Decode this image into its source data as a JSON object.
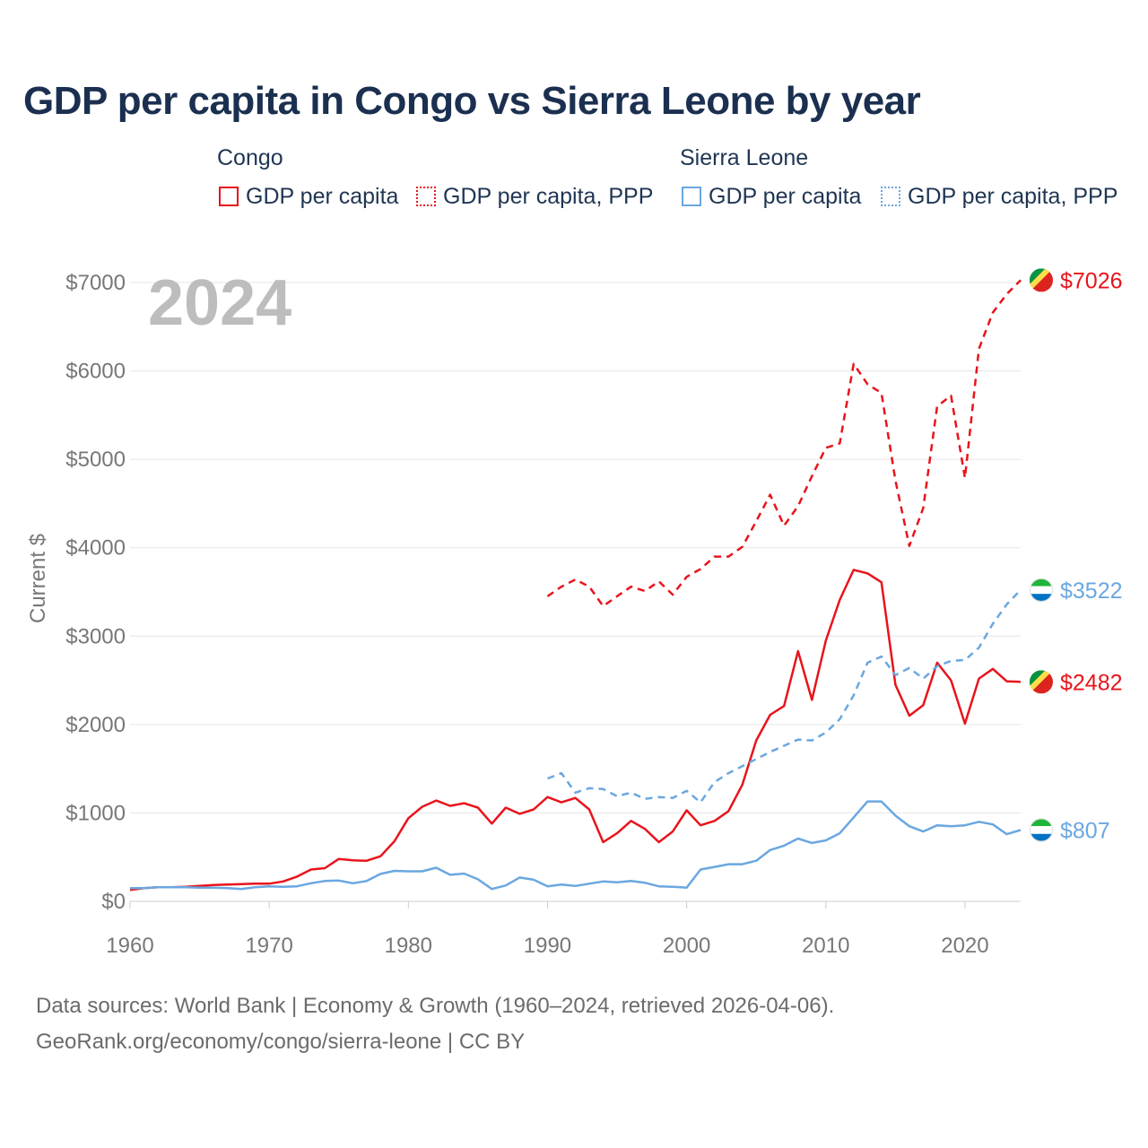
{
  "title": "GDP per capita in Congo vs Sierra Leone by year",
  "legend": {
    "groups": [
      {
        "name": "Congo",
        "items": [
          "GDP per capita",
          "GDP per capita, PPP"
        ],
        "color": "#e8141b"
      },
      {
        "name": "Sierra Leone",
        "items": [
          "GDP per capita",
          "GDP per capita, PPP"
        ],
        "color": "#6aa7e0"
      }
    ]
  },
  "footer": {
    "line1": "Data sources: World Bank | Economy & Growth (1960–2024, retrieved 2026-04-06).",
    "line2": "GeoRank.org/economy/congo/sierra-leone | CC BY"
  },
  "chart_data": {
    "type": "line",
    "title": "GDP per capita in Congo vs Sierra Leone by year",
    "year_label": "2024",
    "ylabel": "Current $",
    "xlabel": "",
    "xlim": [
      1960,
      2024
    ],
    "ylim": [
      0,
      7000
    ],
    "x_ticks": [
      1960,
      1970,
      1980,
      1990,
      2000,
      2010,
      2020
    ],
    "y_ticks": [
      0,
      1000,
      2000,
      3000,
      4000,
      5000,
      6000,
      7000
    ],
    "y_tick_labels": [
      "$0",
      "$1000",
      "$2000",
      "$3000",
      "$4000",
      "$5000",
      "$6000",
      "$7000"
    ],
    "grid": true,
    "series": [
      {
        "name": "Congo GDP per capita",
        "color": "#e8141b",
        "dashed": false,
        "end_label": "$2482",
        "flag": "congo",
        "points": [
          [
            1960,
            130
          ],
          [
            1961,
            150
          ],
          [
            1962,
            160
          ],
          [
            1963,
            160
          ],
          [
            1964,
            165
          ],
          [
            1965,
            175
          ],
          [
            1966,
            185
          ],
          [
            1967,
            190
          ],
          [
            1968,
            195
          ],
          [
            1969,
            200
          ],
          [
            1970,
            200
          ],
          [
            1971,
            225
          ],
          [
            1972,
            280
          ],
          [
            1973,
            360
          ],
          [
            1974,
            375
          ],
          [
            1975,
            480
          ],
          [
            1976,
            465
          ],
          [
            1977,
            460
          ],
          [
            1978,
            510
          ],
          [
            1979,
            680
          ],
          [
            1980,
            940
          ],
          [
            1981,
            1070
          ],
          [
            1982,
            1140
          ],
          [
            1983,
            1080
          ],
          [
            1984,
            1110
          ],
          [
            1985,
            1060
          ],
          [
            1986,
            880
          ],
          [
            1987,
            1060
          ],
          [
            1988,
            990
          ],
          [
            1989,
            1040
          ],
          [
            1990,
            1180
          ],
          [
            1991,
            1120
          ],
          [
            1992,
            1170
          ],
          [
            1993,
            1040
          ],
          [
            1994,
            670
          ],
          [
            1995,
            770
          ],
          [
            1996,
            910
          ],
          [
            1997,
            820
          ],
          [
            1998,
            670
          ],
          [
            1999,
            790
          ],
          [
            2000,
            1030
          ],
          [
            2001,
            860
          ],
          [
            2002,
            910
          ],
          [
            2003,
            1020
          ],
          [
            2004,
            1320
          ],
          [
            2005,
            1820
          ],
          [
            2006,
            2110
          ],
          [
            2007,
            2210
          ],
          [
            2008,
            2830
          ],
          [
            2009,
            2280
          ],
          [
            2010,
            2950
          ],
          [
            2011,
            3410
          ],
          [
            2012,
            3750
          ],
          [
            2013,
            3710
          ],
          [
            2014,
            3610
          ],
          [
            2015,
            2450
          ],
          [
            2016,
            2100
          ],
          [
            2017,
            2220
          ],
          [
            2018,
            2700
          ],
          [
            2019,
            2500
          ],
          [
            2020,
            2010
          ],
          [
            2021,
            2520
          ],
          [
            2022,
            2630
          ],
          [
            2023,
            2490
          ],
          [
            2024,
            2482
          ]
        ]
      },
      {
        "name": "Congo GDP per capita, PPP",
        "color": "#e8141b",
        "dashed": true,
        "end_label": "$7026",
        "flag": "congo",
        "points": [
          [
            1990,
            3450
          ],
          [
            1991,
            3560
          ],
          [
            1992,
            3640
          ],
          [
            1993,
            3560
          ],
          [
            1994,
            3340
          ],
          [
            1995,
            3450
          ],
          [
            1996,
            3560
          ],
          [
            1997,
            3510
          ],
          [
            1998,
            3620
          ],
          [
            1999,
            3470
          ],
          [
            2000,
            3670
          ],
          [
            2001,
            3760
          ],
          [
            2002,
            3900
          ],
          [
            2003,
            3900
          ],
          [
            2004,
            4010
          ],
          [
            2005,
            4300
          ],
          [
            2006,
            4600
          ],
          [
            2007,
            4250
          ],
          [
            2008,
            4470
          ],
          [
            2009,
            4810
          ],
          [
            2010,
            5130
          ],
          [
            2011,
            5180
          ],
          [
            2012,
            6080
          ],
          [
            2013,
            5850
          ],
          [
            2014,
            5750
          ],
          [
            2015,
            4760
          ],
          [
            2016,
            4020
          ],
          [
            2017,
            4450
          ],
          [
            2018,
            5600
          ],
          [
            2019,
            5720
          ],
          [
            2020,
            4790
          ],
          [
            2021,
            6250
          ],
          [
            2022,
            6660
          ],
          [
            2023,
            6870
          ],
          [
            2024,
            7026
          ]
        ]
      },
      {
        "name": "Sierra Leone GDP per capita",
        "color": "#6aa7e0",
        "dashed": false,
        "end_label": "$807",
        "flag": "sierra-leone",
        "points": [
          [
            1960,
            150
          ],
          [
            1961,
            150
          ],
          [
            1962,
            160
          ],
          [
            1963,
            160
          ],
          [
            1964,
            160
          ],
          [
            1965,
            155
          ],
          [
            1966,
            155
          ],
          [
            1967,
            150
          ],
          [
            1968,
            140
          ],
          [
            1969,
            160
          ],
          [
            1970,
            170
          ],
          [
            1971,
            165
          ],
          [
            1972,
            170
          ],
          [
            1973,
            205
          ],
          [
            1974,
            230
          ],
          [
            1975,
            235
          ],
          [
            1976,
            205
          ],
          [
            1977,
            230
          ],
          [
            1978,
            310
          ],
          [
            1979,
            345
          ],
          [
            1980,
            340
          ],
          [
            1981,
            340
          ],
          [
            1982,
            380
          ],
          [
            1983,
            300
          ],
          [
            1984,
            315
          ],
          [
            1985,
            250
          ],
          [
            1986,
            140
          ],
          [
            1987,
            180
          ],
          [
            1988,
            270
          ],
          [
            1989,
            245
          ],
          [
            1990,
            170
          ],
          [
            1991,
            190
          ],
          [
            1992,
            175
          ],
          [
            1993,
            200
          ],
          [
            1994,
            225
          ],
          [
            1995,
            215
          ],
          [
            1996,
            230
          ],
          [
            1997,
            210
          ],
          [
            1998,
            170
          ],
          [
            1999,
            165
          ],
          [
            2000,
            155
          ],
          [
            2001,
            360
          ],
          [
            2002,
            390
          ],
          [
            2003,
            420
          ],
          [
            2004,
            420
          ],
          [
            2005,
            460
          ],
          [
            2006,
            580
          ],
          [
            2007,
            630
          ],
          [
            2008,
            710
          ],
          [
            2009,
            660
          ],
          [
            2010,
            690
          ],
          [
            2011,
            770
          ],
          [
            2012,
            950
          ],
          [
            2013,
            1130
          ],
          [
            2014,
            1130
          ],
          [
            2015,
            970
          ],
          [
            2016,
            850
          ],
          [
            2017,
            790
          ],
          [
            2018,
            860
          ],
          [
            2019,
            850
          ],
          [
            2020,
            860
          ],
          [
            2021,
            900
          ],
          [
            2022,
            870
          ],
          [
            2023,
            760
          ],
          [
            2024,
            807
          ]
        ]
      },
      {
        "name": "Sierra Leone GDP per capita, PPP",
        "color": "#6aa7e0",
        "dashed": true,
        "end_label": "$3522",
        "flag": "sierra-leone",
        "points": [
          [
            1990,
            1390
          ],
          [
            1991,
            1450
          ],
          [
            1992,
            1230
          ],
          [
            1993,
            1280
          ],
          [
            1994,
            1270
          ],
          [
            1995,
            1190
          ],
          [
            1996,
            1230
          ],
          [
            1997,
            1160
          ],
          [
            1998,
            1180
          ],
          [
            1999,
            1170
          ],
          [
            2000,
            1250
          ],
          [
            2001,
            1120
          ],
          [
            2002,
            1350
          ],
          [
            2003,
            1450
          ],
          [
            2004,
            1530
          ],
          [
            2005,
            1610
          ],
          [
            2006,
            1690
          ],
          [
            2007,
            1760
          ],
          [
            2008,
            1830
          ],
          [
            2009,
            1820
          ],
          [
            2010,
            1910
          ],
          [
            2011,
            2060
          ],
          [
            2012,
            2330
          ],
          [
            2013,
            2700
          ],
          [
            2014,
            2770
          ],
          [
            2015,
            2560
          ],
          [
            2016,
            2640
          ],
          [
            2017,
            2520
          ],
          [
            2018,
            2660
          ],
          [
            2019,
            2720
          ],
          [
            2020,
            2730
          ],
          [
            2021,
            2870
          ],
          [
            2022,
            3140
          ],
          [
            2023,
            3360
          ],
          [
            2024,
            3522
          ]
        ]
      }
    ]
  }
}
